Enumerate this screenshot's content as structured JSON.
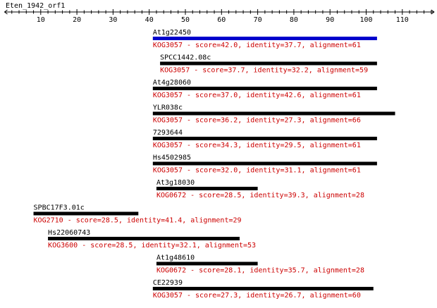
{
  "query": {
    "name": "Eten_1942_orf1",
    "axis_min": 0,
    "axis_max": 118,
    "ticks": [
      10,
      20,
      30,
      40,
      50,
      60,
      70,
      80,
      90,
      100,
      110
    ]
  },
  "colors": {
    "axis": "#000000",
    "bar": "#000000",
    "highlight_bar": "#0000cc",
    "hit_text": "#cc0000",
    "label_text": "#000000"
  },
  "hits": [
    {
      "name": "At1g22450",
      "start": 41,
      "end": 103,
      "kog": "KOG3057",
      "score": "42.0",
      "identity": "37.7",
      "alignment": "61",
      "highlight": true,
      "detail": "KOG3057 - score=42.0, identity=37.7, alignment=61"
    },
    {
      "name": "SPCC1442.08c",
      "start": 43,
      "end": 103,
      "kog": "KOG3057",
      "score": "37.7",
      "identity": "32.2",
      "alignment": "59",
      "highlight": false,
      "detail": "KOG3057 - score=37.7, identity=32.2, alignment=59"
    },
    {
      "name": "At4g28060",
      "start": 41,
      "end": 103,
      "kog": "KOG3057",
      "score": "37.0",
      "identity": "42.6",
      "alignment": "61",
      "highlight": false,
      "detail": "KOG3057 - score=37.0, identity=42.6, alignment=61"
    },
    {
      "name": "YLR038c",
      "start": 41,
      "end": 108,
      "kog": "KOG3057",
      "score": "36.2",
      "identity": "27.3",
      "alignment": "66",
      "highlight": false,
      "detail": "KOG3057 - score=36.2, identity=27.3, alignment=66"
    },
    {
      "name": "7293644",
      "start": 41,
      "end": 103,
      "kog": "KOG3057",
      "score": "34.3",
      "identity": "29.5",
      "alignment": "61",
      "highlight": false,
      "detail": "KOG3057 - score=34.3, identity=29.5, alignment=61"
    },
    {
      "name": "Hs4502985",
      "start": 41,
      "end": 103,
      "kog": "KOG3057",
      "score": "32.0",
      "identity": "31.1",
      "alignment": "61",
      "highlight": false,
      "detail": "KOG3057 - score=32.0, identity=31.1, alignment=61"
    },
    {
      "name": "At3g18030",
      "start": 42,
      "end": 70,
      "kog": "KOG0672",
      "score": "28.5",
      "identity": "39.3",
      "alignment": "28",
      "highlight": false,
      "detail": "KOG0672 - score=28.5, identity=39.3, alignment=28"
    },
    {
      "name": "SPBC17F3.01c",
      "start": 8,
      "end": 37,
      "kog": "KOG2710",
      "score": "28.5",
      "identity": "41.4",
      "alignment": "29",
      "highlight": false,
      "detail": "KOG2710 - score=28.5, identity=41.4, alignment=29"
    },
    {
      "name": "Hs22060743",
      "start": 12,
      "end": 65,
      "kog": "KOG3600",
      "score": "28.5",
      "identity": "32.1",
      "alignment": "53",
      "highlight": false,
      "detail": "KOG3600 - score=28.5, identity=32.1, alignment=53"
    },
    {
      "name": "At1g48610",
      "start": 42,
      "end": 70,
      "kog": "KOG0672",
      "score": "28.1",
      "identity": "35.7",
      "alignment": "28",
      "highlight": false,
      "detail": "KOG0672 - score=28.1, identity=35.7, alignment=28"
    },
    {
      "name": "CE22939",
      "start": 41,
      "end": 102,
      "kog": "KOG3057",
      "score": "27.3",
      "identity": "26.7",
      "alignment": "60",
      "highlight": false,
      "detail": "KOG3057 - score=27.3, identity=26.7, alignment=60"
    }
  ]
}
